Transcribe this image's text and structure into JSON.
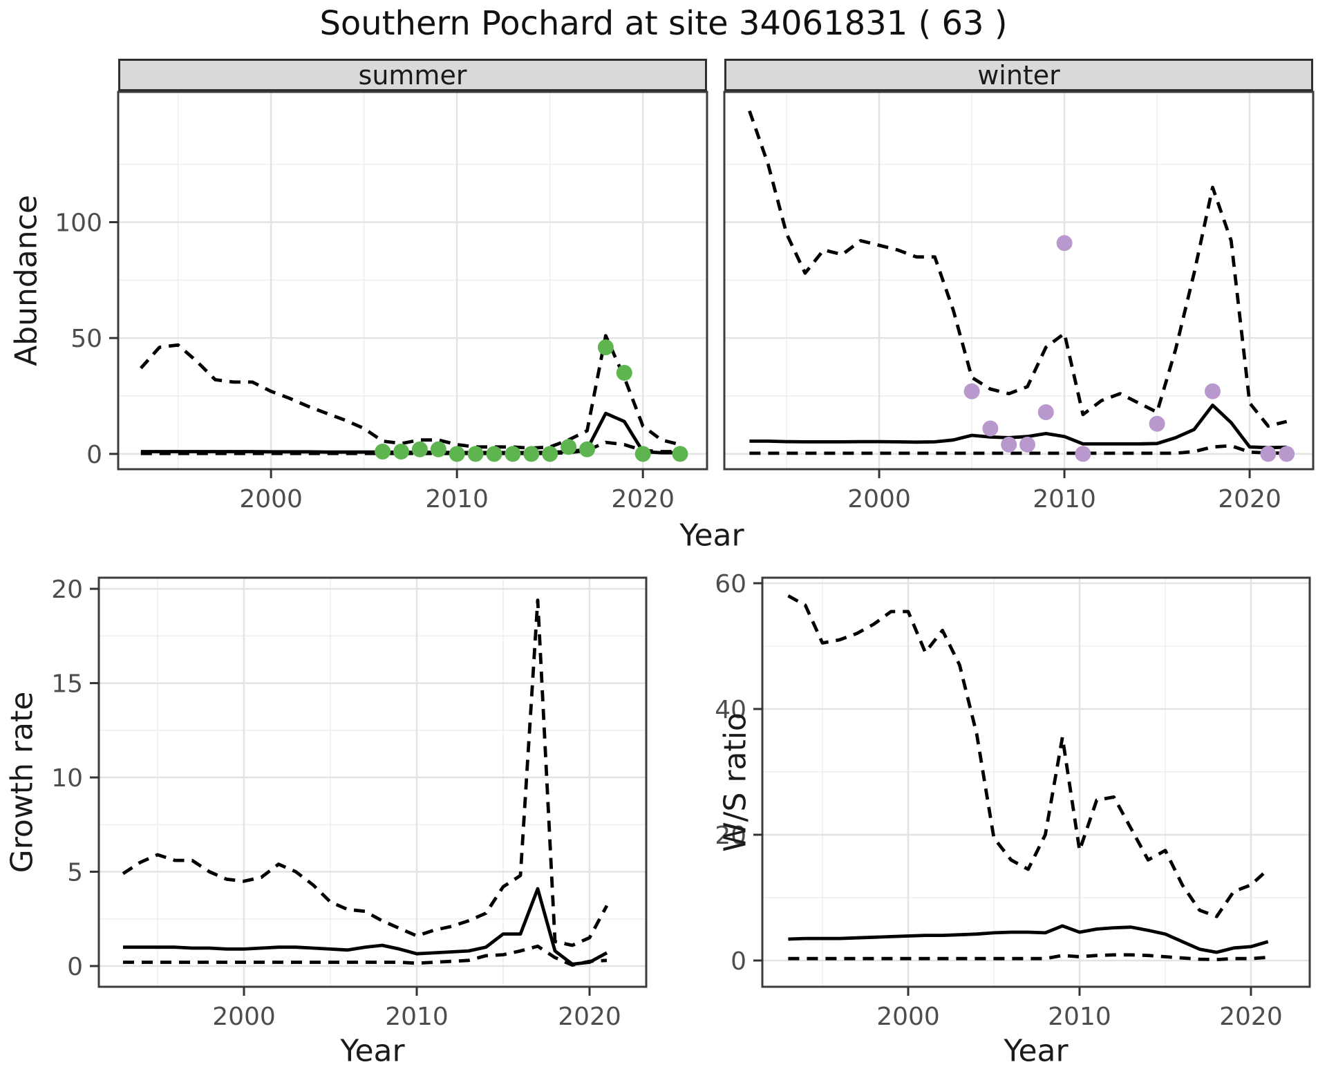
{
  "title": "Southern Pochard at site 34061831 ( 63 )",
  "facets": {
    "summer": "summer",
    "winter": "winter"
  },
  "axis_labels": {
    "abundance": "Abundance",
    "growth": "Growth rate",
    "ws": "W/S ratio",
    "year": "Year"
  },
  "colors": {
    "summer_points": "#5eb54f",
    "winter_points": "#b898cd",
    "line": "#000000",
    "ci_line": "#000000",
    "grid_major": "#e3e3e3",
    "grid_minor": "#efefef",
    "panel_border": "#3c3c3c",
    "tick_mark": "#333333",
    "tick_text": "#4d4d4d",
    "strip_bg": "#d9d9d9",
    "panel_bg": "#ffffff"
  },
  "chart_data": [
    {
      "id": "summer",
      "type": "line",
      "facet_label": "summer",
      "xlabel": "Year",
      "ylabel": "Abundance",
      "xlim": [
        1991.78,
        2023.45
      ],
      "ylim": [
        -6.6,
        156.2
      ],
      "xticks": [
        2000,
        2010,
        2020
      ],
      "xminor": [
        1995,
        2005,
        2015
      ],
      "yticks": [
        0,
        50,
        100
      ],
      "yminor": [
        25,
        75,
        125
      ],
      "show_yticklabels": true,
      "x": [
        1993,
        1994,
        1995,
        1996,
        1997,
        1998,
        1999,
        2000,
        2001,
        2002,
        2003,
        2004,
        2005,
        2006,
        2007,
        2008,
        2009,
        2010,
        2011,
        2012,
        2013,
        2014,
        2015,
        2016,
        2017,
        2018,
        2019,
        2020,
        2021,
        2022
      ],
      "series": [
        {
          "name": "upper-95ci",
          "style": "dashed",
          "values": [
            37,
            46,
            47,
            40,
            32,
            31,
            31,
            27,
            24,
            20.5,
            17.5,
            14.5,
            11,
            5.5,
            4.5,
            6,
            6,
            4,
            3,
            3,
            3,
            2.5,
            3,
            6,
            10,
            51,
            33,
            12,
            6,
            4
          ]
        },
        {
          "name": "median",
          "style": "solid",
          "values": [
            1,
            1,
            1,
            1,
            1,
            1,
            1,
            0.9,
            0.9,
            0.9,
            0.8,
            0.8,
            0.8,
            0.8,
            0.7,
            0.7,
            0.7,
            0.6,
            0.6,
            0.6,
            0.6,
            0.6,
            0.7,
            1,
            2,
            17.5,
            14,
            1,
            0.5,
            0.5
          ]
        },
        {
          "name": "lower-95ci",
          "style": "dashed",
          "values": [
            0.2,
            0.2,
            0.2,
            0.2,
            0.2,
            0.2,
            0.2,
            0.2,
            0.2,
            0.2,
            0.2,
            0.2,
            0.2,
            0.2,
            0.2,
            0.2,
            0.2,
            0.2,
            0.2,
            0.2,
            0.2,
            0.2,
            0.2,
            0.5,
            1.5,
            5,
            4,
            1.5,
            1,
            1
          ]
        }
      ],
      "points": {
        "name": "observed-count-summer",
        "color_key": "summer_points",
        "x": [
          2006,
          2007,
          2008,
          2009,
          2010,
          2011,
          2012,
          2013,
          2014,
          2015,
          2016,
          2017,
          2018,
          2019,
          2020,
          2022
        ],
        "values": [
          1,
          1,
          2,
          2,
          0,
          0,
          0,
          0,
          0,
          0,
          3,
          2,
          46,
          35,
          0,
          0
        ]
      }
    },
    {
      "id": "winter",
      "type": "line",
      "facet_label": "winter",
      "xlabel": "Year",
      "ylabel": "Abundance",
      "xlim": [
        1991.64,
        2023.43
      ],
      "ylim": [
        -6.6,
        156.2
      ],
      "xticks": [
        2000,
        2010,
        2020
      ],
      "xminor": [
        1995,
        2005,
        2015
      ],
      "yticks": [
        0,
        50,
        100
      ],
      "yminor": [
        25,
        75,
        125
      ],
      "show_yticklabels": false,
      "x": [
        1993,
        1994,
        1995,
        1996,
        1997,
        1998,
        1999,
        2000,
        2001,
        2002,
        2003,
        2004,
        2005,
        2006,
        2007,
        2008,
        2009,
        2010,
        2011,
        2012,
        2013,
        2014,
        2015,
        2016,
        2017,
        2018,
        2019,
        2020,
        2021,
        2022
      ],
      "series": [
        {
          "name": "upper-95ci",
          "style": "dashed",
          "values": [
            148,
            125,
            95,
            78,
            88,
            86,
            92,
            90,
            88,
            85,
            85,
            62,
            33,
            28,
            26,
            29,
            46,
            52,
            17,
            23,
            26,
            22,
            18,
            45,
            78,
            115,
            92,
            22,
            12,
            14
          ]
        },
        {
          "name": "median",
          "style": "solid",
          "values": [
            5.5,
            5.5,
            5.3,
            5.2,
            5.2,
            5.2,
            5.3,
            5.3,
            5.2,
            5.1,
            5.2,
            6,
            8,
            7.3,
            7,
            7.5,
            8.8,
            7.5,
            4.3,
            4.3,
            4.3,
            4.3,
            4.5,
            7,
            10.5,
            21,
            13.5,
            3,
            2.7,
            2.9
          ]
        },
        {
          "name": "lower-95ci",
          "style": "dashed",
          "values": [
            0.3,
            0.3,
            0.3,
            0.3,
            0.3,
            0.3,
            0.3,
            0.3,
            0.3,
            0.3,
            0.3,
            0.3,
            0.3,
            0.3,
            0.3,
            0.3,
            0.3,
            0.3,
            0.3,
            0.3,
            0.3,
            0.3,
            0.3,
            0.3,
            1,
            3,
            3.5,
            0.8,
            0.4,
            0.3
          ]
        }
      ],
      "points": {
        "name": "observed-count-winter",
        "color_key": "winter_points",
        "x": [
          2005,
          2006,
          2007,
          2008,
          2009,
          2010,
          2011,
          2015,
          2018,
          2021,
          2022
        ],
        "values": [
          27,
          11,
          4,
          4,
          18,
          91,
          0,
          13,
          27,
          0,
          0
        ]
      }
    },
    {
      "id": "growth",
      "type": "line",
      "facet_label": "",
      "xlabel": "Year",
      "ylabel": "Growth rate",
      "xlim": [
        1991.6,
        2023.28
      ],
      "ylim": [
        -1.1,
        20.59
      ],
      "xticks": [
        2000,
        2010,
        2020
      ],
      "xminor": [
        1995,
        2005,
        2015
      ],
      "yticks": [
        0,
        5,
        10,
        15,
        20
      ],
      "yminor": [
        2.5,
        7.5,
        12.5,
        17.5
      ],
      "show_yticklabels": true,
      "x": [
        1993,
        1994,
        1995,
        1996,
        1997,
        1998,
        1999,
        2000,
        2001,
        2002,
        2003,
        2004,
        2005,
        2006,
        2007,
        2008,
        2009,
        2010,
        2011,
        2012,
        2013,
        2014,
        2015,
        2016,
        2017,
        2018,
        2019,
        2020,
        2021
      ],
      "series": [
        {
          "name": "upper-95ci",
          "style": "dashed",
          "values": [
            4.9,
            5.5,
            5.9,
            5.6,
            5.6,
            5.0,
            4.6,
            4.5,
            4.7,
            5.4,
            5.0,
            4.3,
            3.4,
            3.0,
            2.9,
            2.4,
            2.0,
            1.6,
            1.9,
            2.1,
            2.4,
            2.8,
            4.2,
            4.8,
            19.4,
            1.3,
            1.1,
            1.5,
            3.2
          ]
        },
        {
          "name": "median",
          "style": "solid",
          "values": [
            1.0,
            1.0,
            1.0,
            1.0,
            0.95,
            0.95,
            0.9,
            0.9,
            0.95,
            1.0,
            1.0,
            0.95,
            0.9,
            0.85,
            1.0,
            1.1,
            0.9,
            0.65,
            0.7,
            0.75,
            0.8,
            1.0,
            1.7,
            1.7,
            4.1,
            0.8,
            0.1,
            0.2,
            0.7
          ]
        },
        {
          "name": "lower-95ci",
          "style": "dashed",
          "values": [
            0.2,
            0.2,
            0.2,
            0.2,
            0.2,
            0.2,
            0.2,
            0.2,
            0.2,
            0.2,
            0.2,
            0.2,
            0.2,
            0.2,
            0.2,
            0.2,
            0.2,
            0.15,
            0.2,
            0.25,
            0.3,
            0.55,
            0.6,
            0.8,
            1.05,
            0.45,
            0.05,
            0.25,
            0.3
          ]
        }
      ],
      "points": null
    },
    {
      "id": "ws",
      "type": "line",
      "facet_label": "",
      "xlabel": "Year",
      "ylabel": "W/S ratio",
      "xlim": [
        1991.49,
        2023.43
      ],
      "ylim": [
        -4.18,
        60.88
      ],
      "xticks": [
        2000,
        2010,
        2020
      ],
      "xminor": [
        1995,
        2005,
        2015
      ],
      "yticks": [
        0,
        20,
        40,
        60
      ],
      "yminor": [
        10,
        30,
        50
      ],
      "show_yticklabels": true,
      "x": [
        1993,
        1994,
        1995,
        1996,
        1997,
        1998,
        1999,
        2000,
        2001,
        2002,
        2003,
        2004,
        2005,
        2006,
        2007,
        2008,
        2009,
        2010,
        2011,
        2012,
        2013,
        2014,
        2015,
        2016,
        2017,
        2018,
        2019,
        2020,
        2021
      ],
      "series": [
        {
          "name": "upper-95ci",
          "style": "dashed",
          "values": [
            58,
            56.5,
            50.5,
            51,
            52,
            53.5,
            55.5,
            55.5,
            49,
            52.5,
            47,
            36,
            19.5,
            16,
            14.5,
            20,
            35.5,
            17.5,
            25.5,
            26,
            21,
            16,
            17.5,
            12,
            8,
            7,
            11,
            12,
            14.5
          ]
        },
        {
          "name": "median",
          "style": "solid",
          "values": [
            3.4,
            3.5,
            3.5,
            3.5,
            3.6,
            3.7,
            3.8,
            3.9,
            4.0,
            4.0,
            4.1,
            4.2,
            4.4,
            4.5,
            4.5,
            4.4,
            5.5,
            4.5,
            5.0,
            5.2,
            5.3,
            4.8,
            4.2,
            3.0,
            1.8,
            1.3,
            2.0,
            2.2,
            3.0
          ]
        },
        {
          "name": "lower-95ci",
          "style": "dashed",
          "values": [
            0.3,
            0.3,
            0.3,
            0.3,
            0.3,
            0.3,
            0.3,
            0.3,
            0.3,
            0.3,
            0.3,
            0.3,
            0.3,
            0.3,
            0.3,
            0.3,
            0.8,
            0.6,
            0.8,
            0.9,
            0.9,
            0.8,
            0.6,
            0.4,
            0.2,
            0.15,
            0.3,
            0.3,
            0.5
          ]
        }
      ],
      "points": null
    }
  ]
}
